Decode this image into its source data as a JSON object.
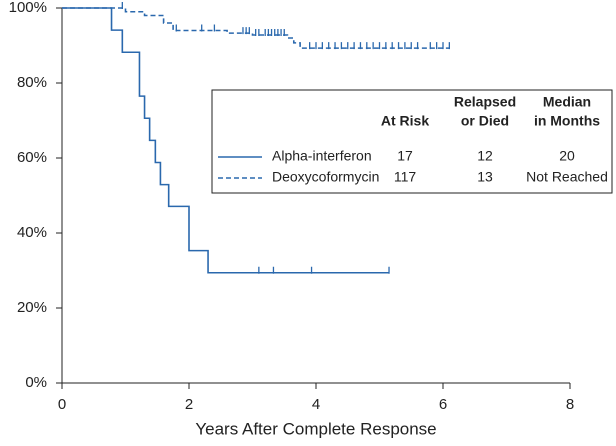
{
  "chart_data": {
    "type": "line",
    "step": "post",
    "xlabel": "Years After Complete Response",
    "xlim": [
      0,
      8
    ],
    "xticks": [
      0,
      2,
      4,
      6,
      8
    ],
    "ylim": [
      0,
      100
    ],
    "yticks": [
      {
        "value": 0,
        "label": "0%"
      },
      {
        "value": 20,
        "label": "20%"
      },
      {
        "value": 40,
        "label": "40%"
      },
      {
        "value": 60,
        "label": "60%"
      },
      {
        "value": 80,
        "label": "80%"
      },
      {
        "value": 100,
        "label": "100%"
      }
    ],
    "legend": {
      "headers": [
        [
          "At Risk"
        ],
        [
          "Relapsed",
          "or Died"
        ],
        [
          "Median",
          "in Months"
        ]
      ]
    },
    "series": [
      {
        "name": "Deoxycoformycin",
        "color": "#2a68ad",
        "dash": true,
        "x": [
          0,
          1.0,
          1.3,
          1.6,
          1.75,
          2.6,
          3.0,
          3.55,
          3.65,
          3.75,
          6.1
        ],
        "values": [
          100,
          99,
          98,
          96,
          94,
          93.3,
          92.8,
          92,
          90.7,
          89.3,
          89.3
        ],
        "censored_x": [
          0.95,
          1.8,
          2.2,
          2.4,
          2.85,
          2.9,
          2.95,
          3.05,
          3.1,
          3.2,
          3.25,
          3.3,
          3.35,
          3.4,
          3.45,
          3.5,
          3.9,
          4.0,
          4.1,
          4.2,
          4.3,
          4.4,
          4.5,
          4.6,
          4.7,
          4.8,
          4.9,
          5.0,
          5.1,
          5.2,
          5.3,
          5.4,
          5.5,
          5.6,
          5.8,
          5.9,
          6.0,
          6.1
        ],
        "at_risk": 117,
        "events": 13,
        "median": "Not Reached"
      },
      {
        "name": "Alpha-interferon",
        "color": "#2a68ad",
        "dash": false,
        "x": [
          0,
          0.78,
          0.95,
          1.22,
          1.3,
          1.38,
          1.47,
          1.55,
          1.68,
          2.0,
          2.3,
          5.15
        ],
        "values": [
          100,
          94.1,
          88.2,
          76.5,
          70.6,
          64.7,
          58.8,
          52.9,
          47.1,
          35.3,
          29.4,
          29.4
        ],
        "censored_x": [
          3.1,
          3.33,
          3.93,
          5.15
        ],
        "at_risk": 17,
        "events": 12,
        "median": 20
      }
    ]
  }
}
